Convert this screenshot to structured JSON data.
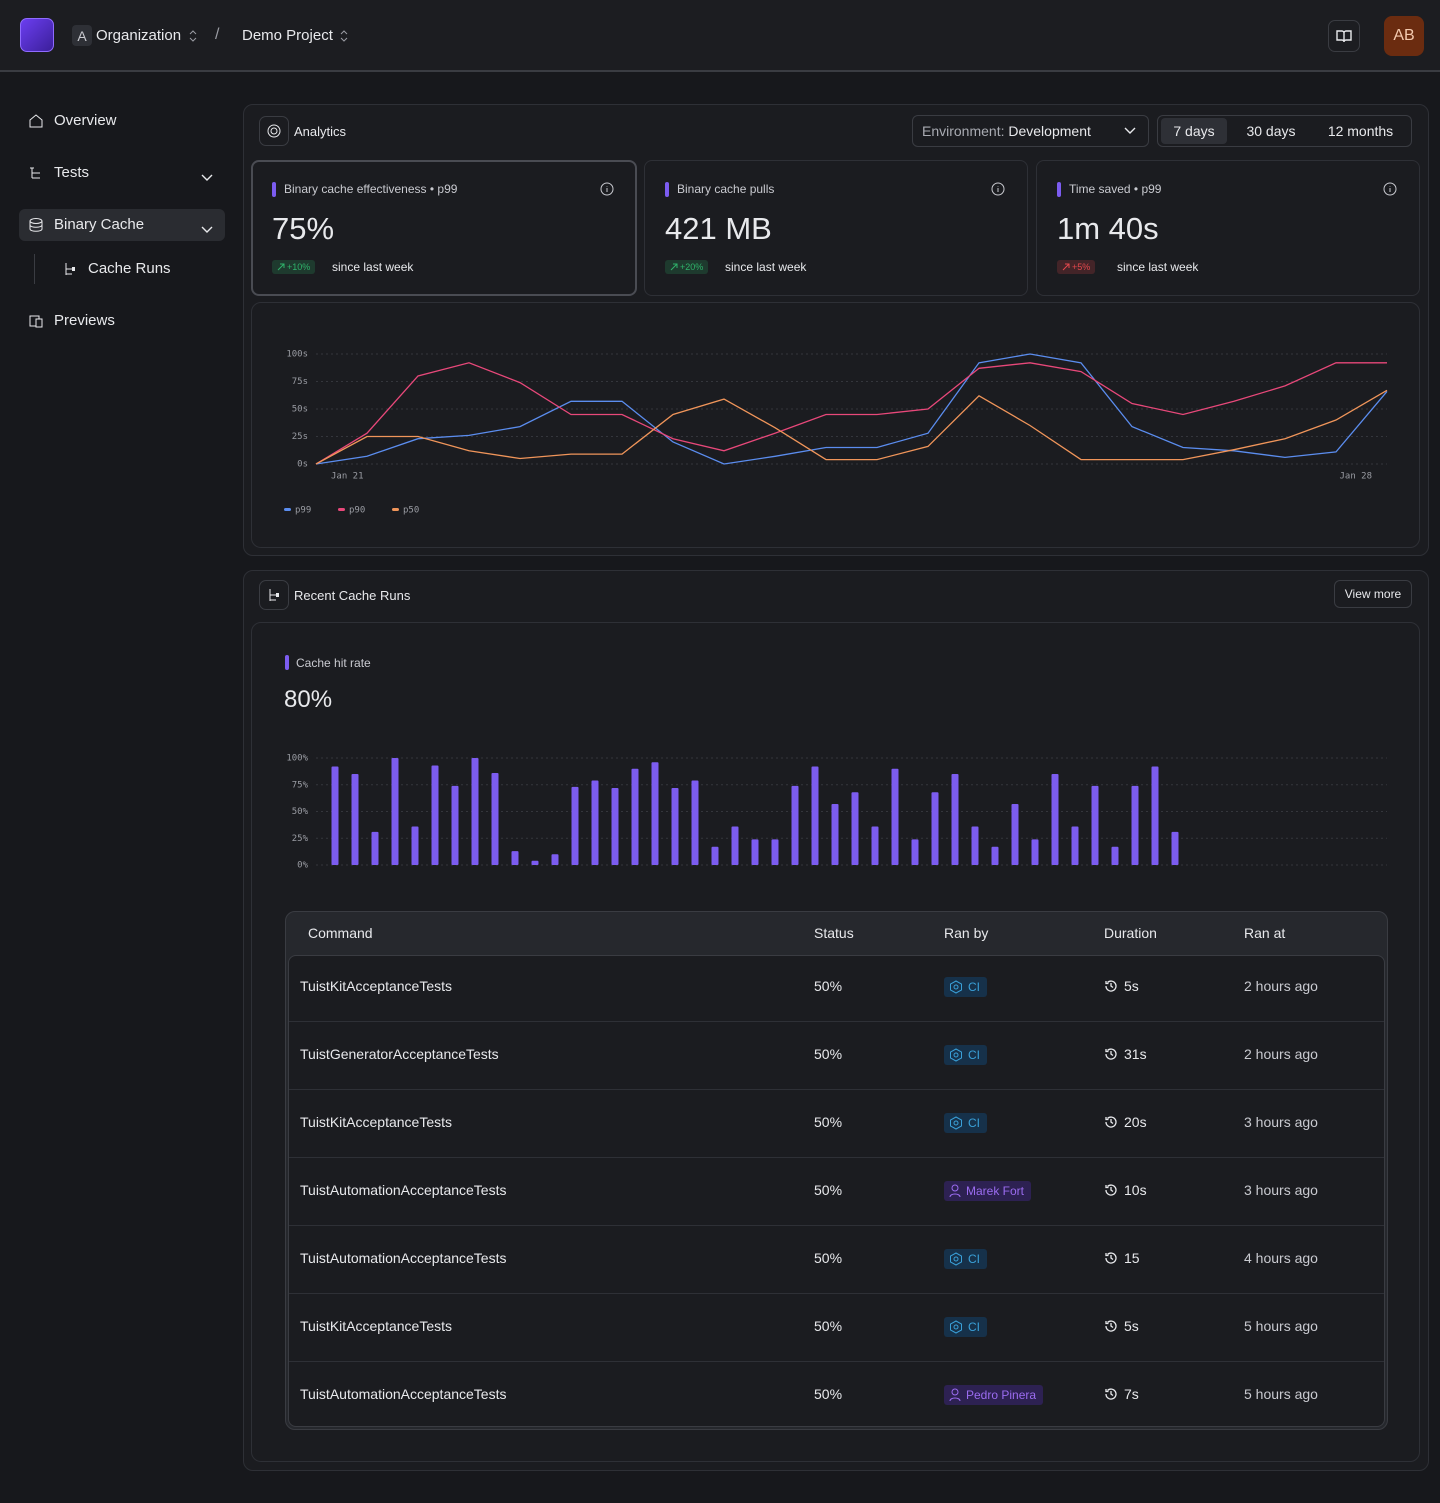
{
  "header": {
    "org_initial": "A",
    "org": "Organization",
    "separator": "/",
    "project": "Demo Project",
    "avatar": "AB"
  },
  "sidebar": {
    "items": [
      "Overview",
      "Tests",
      "Binary Cache",
      "Cache Runs",
      "Previews"
    ]
  },
  "analytics": {
    "title": "Analytics",
    "environment_label": "Environment:",
    "environment": "Development",
    "ranges": [
      "7 days",
      "30 days",
      "12 months"
    ],
    "cards": [
      {
        "title": "Binary cache effectiveness • p99",
        "value": "75%",
        "change": "+10%",
        "badge_color": "#2fb36a",
        "since": "since last week"
      },
      {
        "title": "Binary cache pulls",
        "value": "421 MB",
        "change": "+20%",
        "badge_color": "#2fb36a",
        "since": "since last week"
      },
      {
        "title": "Time saved • p99",
        "value": "1m 40s",
        "change": "+5%",
        "badge_color": "#e5484d",
        "since": "since last week"
      }
    ],
    "chart": {
      "type": "line",
      "categories": [
        "Jan 21",
        null,
        null,
        null,
        null,
        null,
        null,
        null,
        null,
        null,
        null,
        null,
        null,
        null,
        null,
        null,
        null,
        null,
        null,
        null,
        null,
        "Jan 28"
      ],
      "ylim": [
        0,
        100
      ],
      "yticks": [
        {
          "value": 0,
          "label": "0s"
        },
        {
          "value": 25,
          "label": "25s"
        },
        {
          "value": 50,
          "label": "50s"
        },
        {
          "value": 75,
          "label": "75s"
        },
        {
          "value": 100,
          "label": "100s"
        }
      ],
      "grid": true,
      "series": [
        {
          "name": "p99",
          "color": "#5b8def",
          "values": [
            0,
            7,
            23,
            26,
            34,
            57,
            57,
            20,
            0,
            7,
            15,
            15,
            28,
            92,
            100,
            92,
            34,
            15,
            12,
            6,
            11,
            66
          ]
        },
        {
          "name": "p90",
          "color": "#e8487a",
          "values": [
            0,
            28,
            80,
            92,
            74,
            45,
            45,
            23,
            12,
            28,
            45,
            45,
            50,
            87,
            92,
            84,
            55,
            45,
            57,
            71,
            92,
            92
          ]
        },
        {
          "name": "p50",
          "color": "#f0955a",
          "values": [
            0,
            25,
            25,
            12,
            5,
            9,
            9,
            45,
            59,
            33,
            4,
            4,
            16,
            62,
            35,
            4,
            4,
            4,
            13,
            23,
            40,
            67
          ]
        }
      ]
    }
  },
  "runs": {
    "title": "Recent Cache Runs",
    "view_more": "View more",
    "metric_title": "Cache hit rate",
    "metric_value": "80%",
    "chart": {
      "type": "bar",
      "color": "#7c5cf0",
      "ylim": [
        0,
        100
      ],
      "yticks": [
        {
          "value": 0,
          "label": "0%"
        },
        {
          "value": 25,
          "label": "25%"
        },
        {
          "value": 50,
          "label": "50%"
        },
        {
          "value": 75,
          "label": "75%"
        },
        {
          "value": 100,
          "label": "100%"
        }
      ],
      "grid": true,
      "values": [
        92,
        85,
        31,
        100,
        36,
        93,
        74,
        100,
        86,
        13,
        4,
        10,
        73,
        79,
        72,
        90,
        96,
        72,
        79,
        17,
        36,
        24,
        24,
        74,
        92,
        57,
        68,
        36,
        90,
        24,
        68,
        85,
        36,
        17,
        57,
        24,
        85,
        36,
        74,
        17,
        74,
        92,
        31
      ]
    },
    "table": {
      "columns": [
        "Command",
        "Status",
        "Ran by",
        "Duration",
        "Ran at"
      ],
      "rows": [
        {
          "command": "TuistKitAcceptanceTests",
          "status": "50%",
          "ran_by": "CI",
          "kind": "ci",
          "duration": "5s",
          "ran_at": "2 hours ago"
        },
        {
          "command": "TuistGeneratorAcceptanceTests",
          "status": "50%",
          "ran_by": "CI",
          "kind": "ci",
          "duration": "31s",
          "ran_at": "2 hours ago"
        },
        {
          "command": "TuistKitAcceptanceTests",
          "status": "50%",
          "ran_by": "CI",
          "kind": "ci",
          "duration": "20s",
          "ran_at": "3 hours ago"
        },
        {
          "command": "TuistAutomationAcceptanceTests",
          "status": "50%",
          "ran_by": "Marek Fort",
          "kind": "user",
          "duration": "10s",
          "ran_at": "3 hours ago"
        },
        {
          "command": "TuistAutomationAcceptanceTests",
          "status": "50%",
          "ran_by": "CI",
          "kind": "ci",
          "duration": "15",
          "ran_at": "4 hours ago"
        },
        {
          "command": "TuistKitAcceptanceTests",
          "status": "50%",
          "ran_by": "CI",
          "kind": "ci",
          "duration": "5s",
          "ran_at": "5 hours ago"
        },
        {
          "command": "TuistAutomationAcceptanceTests",
          "status": "50%",
          "ran_by": "Pedro Pinera",
          "kind": "user",
          "duration": "7s",
          "ran_at": "5 hours ago"
        }
      ]
    }
  }
}
